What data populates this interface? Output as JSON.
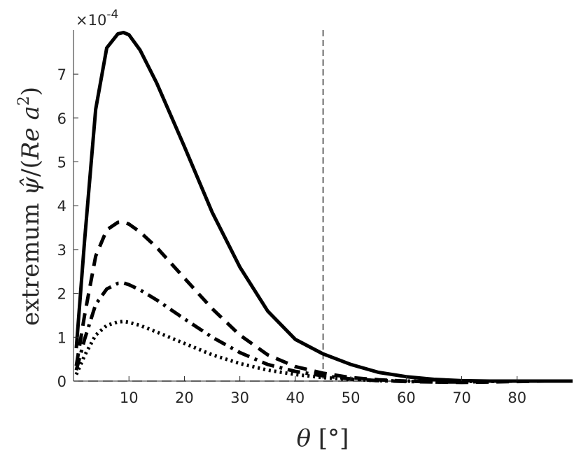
{
  "chart_data": {
    "type": "line",
    "xlabel": "θ [°]",
    "ylabel": "extremum ψ̂/(Re a²)",
    "y_multiplier": "×10⁻⁴",
    "y_multiplier_parts": {
      "base": "×10",
      "exponent": "-4"
    },
    "ylabel_parts": {
      "prefix": "extremum ",
      "psi": "ψ̂",
      "slash_open": "/(",
      "re": "Re",
      "a": "a",
      "exponent": "2",
      "close": ")"
    },
    "xlabel_parts": {
      "theta": "θ",
      "unit": "[°]"
    },
    "xlim": [
      0,
      90
    ],
    "ylim": [
      0,
      8
    ],
    "x_ticks": [
      10,
      20,
      30,
      40,
      50,
      60,
      70,
      80
    ],
    "y_ticks": [
      0,
      1,
      2,
      3,
      4,
      5,
      6,
      7
    ],
    "grid": false,
    "legend": "none",
    "reference_lines": [
      {
        "orientation": "vertical",
        "x": 45,
        "style": "dashed"
      },
      {
        "orientation": "horizontal",
        "y": 0,
        "style": "dashed"
      }
    ],
    "x": [
      0.5,
      2,
      4,
      6,
      8,
      9,
      10,
      12,
      15,
      20,
      25,
      30,
      35,
      40,
      45,
      50,
      55,
      60,
      65,
      70,
      75,
      80,
      85,
      90
    ],
    "series": [
      {
        "style": "solid",
        "values": [
          0.75,
          3.2,
          6.2,
          7.6,
          7.92,
          7.95,
          7.9,
          7.55,
          6.8,
          5.35,
          3.85,
          2.6,
          1.6,
          0.95,
          0.62,
          0.38,
          0.2,
          0.1,
          0.04,
          0.01,
          0.0,
          0.0,
          0.0,
          0.0
        ]
      },
      {
        "style": "dashed",
        "values": [
          0.35,
          1.5,
          2.85,
          3.45,
          3.62,
          3.63,
          3.58,
          3.4,
          3.05,
          2.35,
          1.65,
          1.05,
          0.6,
          0.33,
          0.18,
          0.08,
          0.03,
          0.0,
          -0.02,
          -0.03,
          -0.02,
          -0.01,
          0.0,
          0.0
        ]
      },
      {
        "style": "dashdot",
        "values": [
          0.25,
          0.95,
          1.75,
          2.1,
          2.23,
          2.24,
          2.2,
          2.08,
          1.85,
          1.42,
          1.0,
          0.65,
          0.38,
          0.22,
          0.12,
          0.05,
          0.01,
          -0.01,
          -0.02,
          -0.02,
          -0.01,
          0.0,
          0.0,
          0.0
        ]
      },
      {
        "style": "dotted",
        "values": [
          0.15,
          0.58,
          1.05,
          1.27,
          1.35,
          1.36,
          1.34,
          1.27,
          1.12,
          0.86,
          0.6,
          0.4,
          0.25,
          0.15,
          0.08,
          0.04,
          0.01,
          0.0,
          -0.01,
          -0.01,
          0.0,
          0.0,
          0.0,
          0.0
        ]
      }
    ]
  }
}
